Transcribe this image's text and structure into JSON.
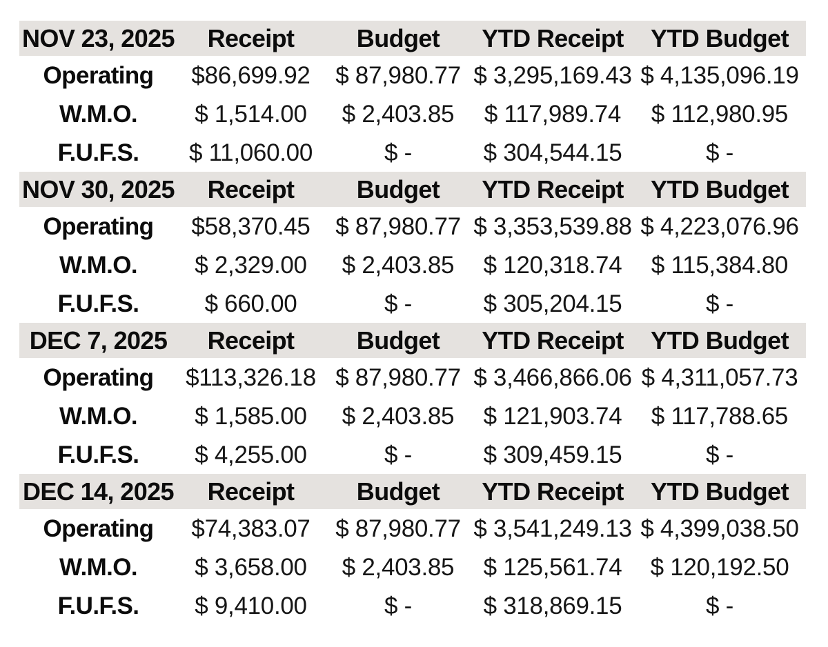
{
  "colors": {
    "background": "#ffffff",
    "header_band": "#e5e2df",
    "text": "#111111"
  },
  "chart_data": {
    "type": "table",
    "columns": [
      "",
      "Receipt",
      "Budget",
      "YTD Receipt",
      "YTD Budget"
    ],
    "row_labels": [
      "Operating",
      "W.M.O.",
      "F.U.F.S."
    ],
    "sections": [
      {
        "date": "NOV 23, 2025",
        "rows": [
          [
            "Operating",
            "$86,699.92",
            "$ 87,980.77",
            "$ 3,295,169.43",
            "$ 4,135,096.19"
          ],
          [
            "W.M.O.",
            "$ 1,514.00",
            "$ 2,403.85",
            "$ 117,989.74",
            "$ 112,980.95"
          ],
          [
            "F.U.F.S.",
            "$ 11,060.00",
            "$ -",
            "$ 304,544.15",
            "$ -"
          ]
        ]
      },
      {
        "date": "NOV 30, 2025",
        "rows": [
          [
            "Operating",
            "$58,370.45",
            "$ 87,980.77",
            "$ 3,353,539.88",
            "$ 4,223,076.96"
          ],
          [
            "W.M.O.",
            "$ 2,329.00",
            "$ 2,403.85",
            "$ 120,318.74",
            "$ 115,384.80"
          ],
          [
            "F.U.F.S.",
            "$ 660.00",
            "$ -",
            "$ 305,204.15",
            "$ -"
          ]
        ]
      },
      {
        "date": "DEC 7, 2025",
        "rows": [
          [
            "Operating",
            "$113,326.18",
            "$ 87,980.77",
            "$ 3,466,866.06",
            "$ 4,311,057.73"
          ],
          [
            "W.M.O.",
            "$ 1,585.00",
            "$ 2,403.85",
            "$ 121,903.74",
            "$ 117,788.65"
          ],
          [
            "F.U.F.S.",
            "$ 4,255.00",
            "$ -",
            "$ 309,459.15",
            "$ -"
          ]
        ]
      },
      {
        "date": "DEC 14, 2025",
        "rows": [
          [
            "Operating",
            "$74,383.07",
            "$ 87,980.77",
            "$ 3,541,249.13",
            "$ 4,399,038.50"
          ],
          [
            "W.M.O.",
            "$ 3,658.00",
            "$ 2,403.85",
            "$ 125,561.74",
            "$ 120,192.50"
          ],
          [
            "F.U.F.S.",
            "$ 9,410.00",
            "$ -",
            "$ 318,869.15",
            "$ -"
          ]
        ]
      }
    ]
  }
}
